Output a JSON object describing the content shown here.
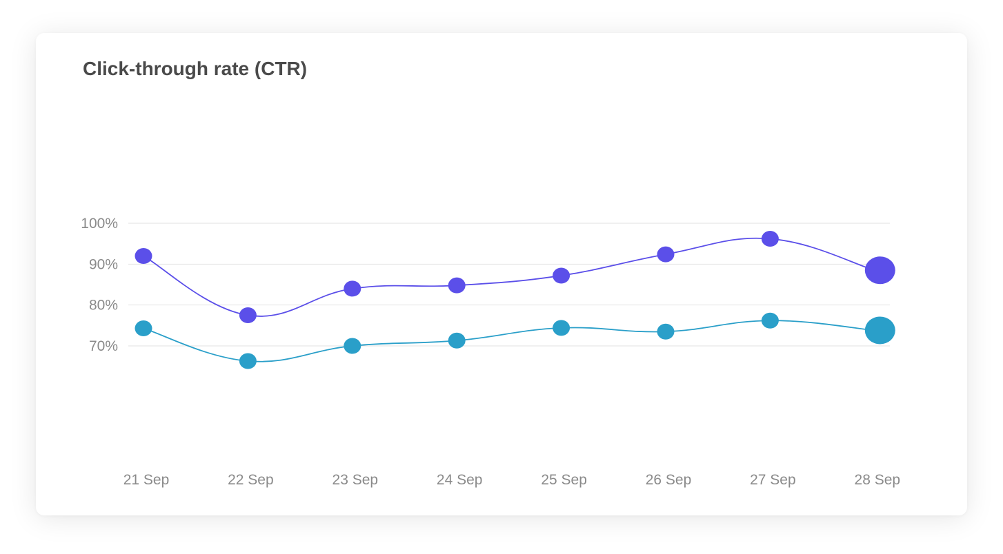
{
  "chart_data": {
    "type": "line",
    "title": "Click-through rate (CTR)",
    "xlabel": "",
    "ylabel": "",
    "categories": [
      "21 Sep",
      "22 Sep",
      "23 Sep",
      "24 Sep",
      "25 Sep",
      "26 Sep",
      "27 Sep",
      "28 Sep"
    ],
    "y_ticks": [
      "100%",
      "90%",
      "80%",
      "70%"
    ],
    "y_tick_values": [
      100,
      90,
      80,
      70
    ],
    "ylim": [
      50,
      120
    ],
    "grid": true,
    "series": [
      {
        "color": "#5b4fe9",
        "values": [
          92,
          77.5,
          84,
          84.8,
          87.2,
          92.4,
          96.2,
          88.5
        ]
      },
      {
        "color": "#2a9fc9",
        "values": [
          74.3,
          66.3,
          70,
          71.3,
          74.4,
          73.5,
          76.2,
          73.8
        ]
      }
    ]
  }
}
